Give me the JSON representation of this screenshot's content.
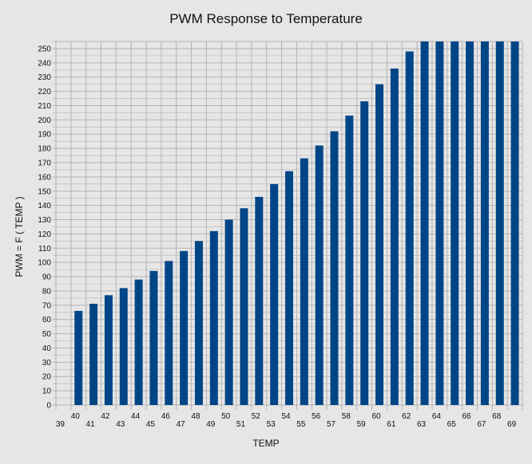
{
  "chart_data": {
    "type": "bar",
    "title": "PWM Response to Temperature",
    "xlabel": "TEMP",
    "ylabel": "PWM  = F ( TEMP )",
    "categories": [
      "39",
      "40",
      "41",
      "42",
      "43",
      "44",
      "45",
      "46",
      "47",
      "48",
      "49",
      "50",
      "51",
      "52",
      "53",
      "54",
      "55",
      "56",
      "57",
      "58",
      "59",
      "60",
      "61",
      "62",
      "63",
      "64",
      "65",
      "66",
      "67",
      "68",
      "69"
    ],
    "values": [
      0,
      66,
      71,
      77,
      82,
      88,
      94,
      101,
      108,
      115,
      122,
      130,
      138,
      146,
      155,
      164,
      173,
      182,
      192,
      203,
      213,
      225,
      236,
      248,
      255,
      255,
      255,
      255,
      255,
      255,
      255
    ],
    "ylim": [
      0,
      255
    ],
    "yticks": [
      0,
      10,
      20,
      30,
      40,
      50,
      60,
      70,
      80,
      90,
      100,
      110,
      120,
      130,
      140,
      150,
      160,
      170,
      180,
      190,
      200,
      210,
      220,
      230,
      240,
      250
    ],
    "grid": true,
    "bar_color": "#004586",
    "grid_color": "#b3b3b3",
    "plot_background": "#e6e6e6"
  }
}
